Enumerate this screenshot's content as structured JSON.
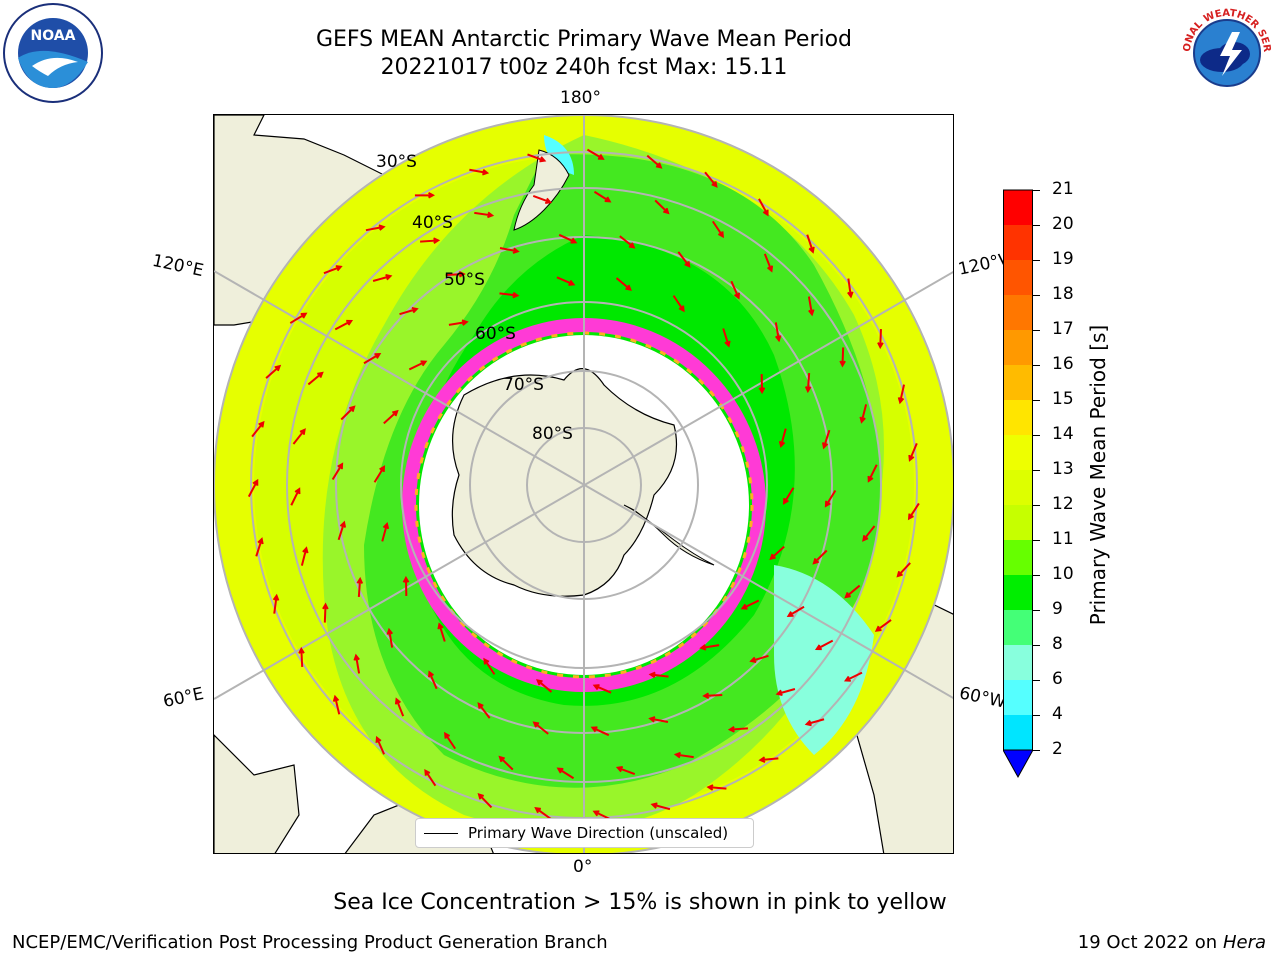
{
  "title_line1": "GEFS MEAN Antarctic Primary Wave Mean Period",
  "title_line2": "20221017 t00z 240h fcst   Max: 15.11",
  "map": {
    "longitude_labels": {
      "top": "180°",
      "bottom": "0°",
      "upper_left": "120°E",
      "lower_left": "60°E",
      "upper_right": "120°W",
      "lower_right": "60°W"
    },
    "latitude_labels": [
      "30°S",
      "40°S",
      "50°S",
      "60°S",
      "70°S",
      "80°S"
    ],
    "legend_label": "Primary Wave Direction (unscaled)"
  },
  "colorbar": {
    "label": "Primary Wave Mean Period [s]",
    "ticks": [
      "21",
      "20",
      "19",
      "18",
      "17",
      "16",
      "15",
      "14",
      "13",
      "12",
      "11",
      "10",
      "9",
      "8",
      "6",
      "4",
      "2"
    ],
    "colors": [
      "#ff0000",
      "#ff3300",
      "#ff5500",
      "#ff7700",
      "#ff9900",
      "#ffbb00",
      "#ffe500",
      "#eeff00",
      "#ddff00",
      "#c6ff00",
      "#66ff00",
      "#00ee00",
      "#44ff77",
      "#88ffdd",
      "#55ffff",
      "#00e5ff",
      "#00ccff",
      "#0077ff",
      "#0000ff"
    ]
  },
  "ice_note": "Sea Ice Concentration > 15% is shown in pink to yellow",
  "footer_left": "NCEP/EMC/Verification Post Processing Product Generation Branch",
  "footer_right_date": "19 Oct 2022 on ",
  "footer_right_machine": "Hera",
  "logos": {
    "left": "NOAA",
    "right": "NATIONAL WEATHER SERVICE"
  }
}
